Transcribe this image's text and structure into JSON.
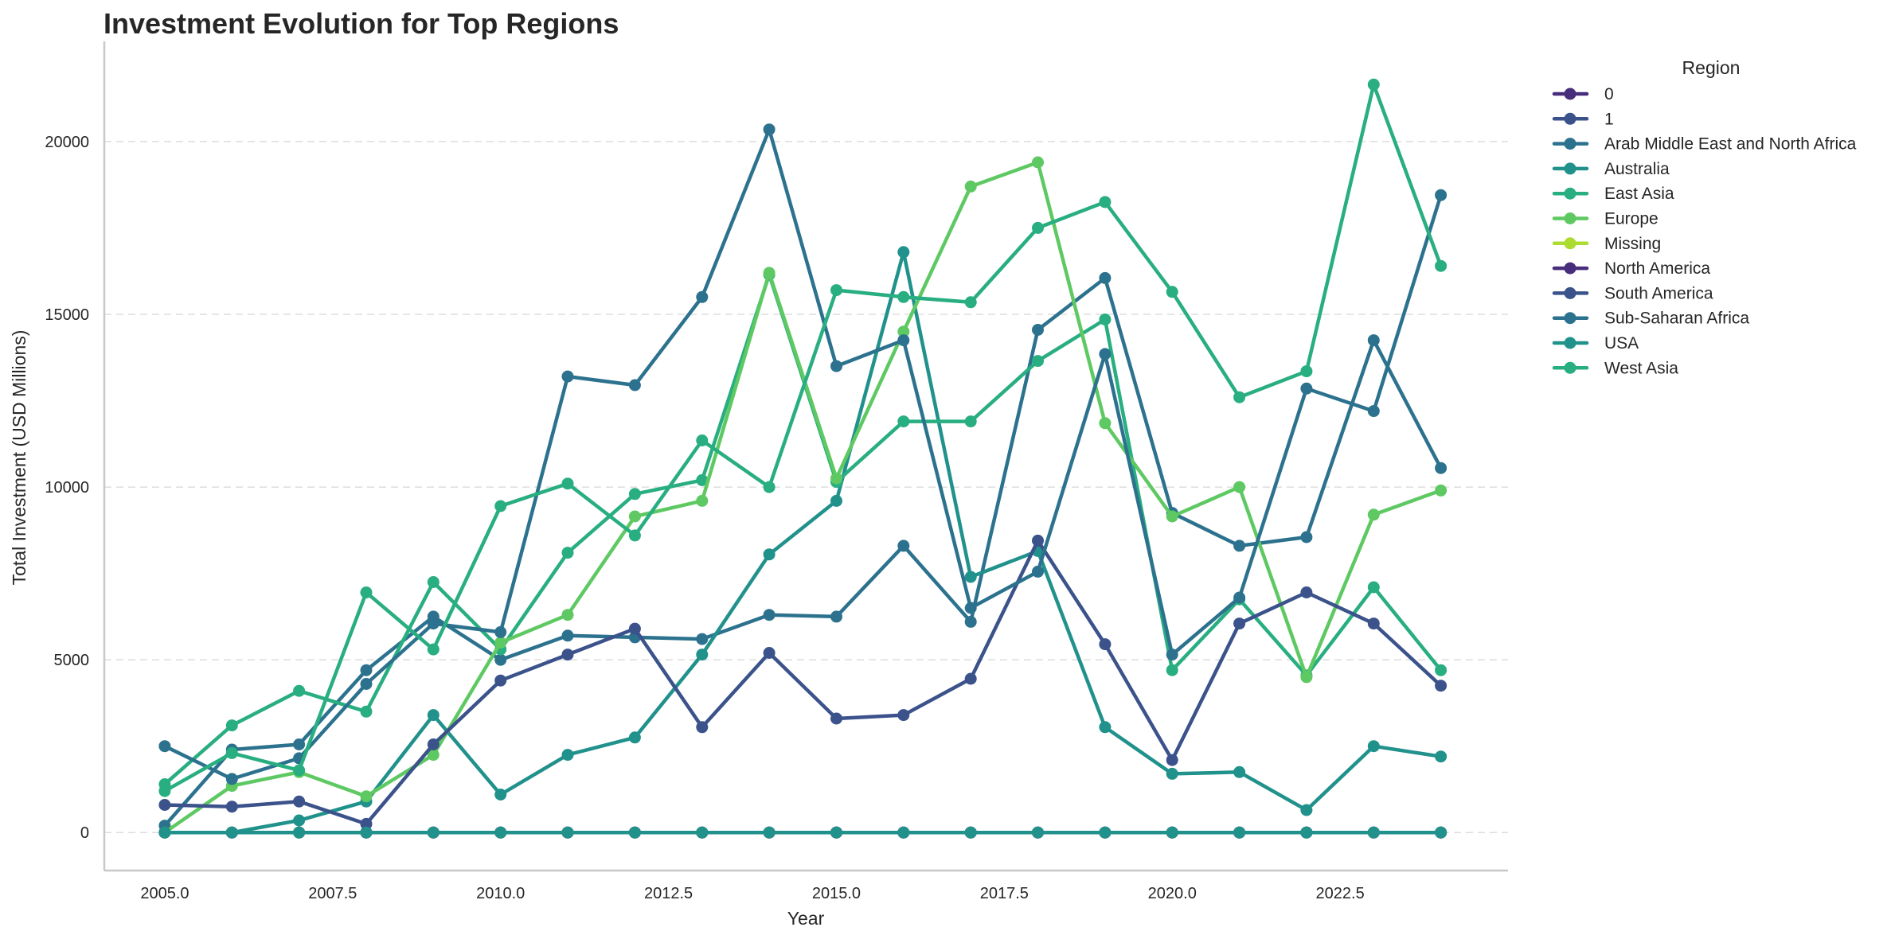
{
  "chart_data": {
    "type": "line",
    "title": "Investment Evolution for Top Regions",
    "xlabel": "Year",
    "ylabel": "Total Investment (USD Millions)",
    "xlim": [
      2004.1,
      2025.0
    ],
    "ylim": [
      -1100,
      22900
    ],
    "x_ticks": [
      2005.0,
      2007.5,
      2010.0,
      2012.5,
      2015.0,
      2017.5,
      2020.0,
      2022.5
    ],
    "x_tick_labels": [
      "2005.0",
      "2007.5",
      "2010.0",
      "2012.5",
      "2015.0",
      "2017.5",
      "2020.0",
      "2022.5"
    ],
    "y_ticks": [
      0,
      5000,
      10000,
      15000,
      20000
    ],
    "y_tick_labels": [
      "0",
      "5000",
      "10000",
      "15000",
      "20000"
    ],
    "grid": "horizontal dashed",
    "legend_title": "Region",
    "legend_placement": "outside right",
    "x": [
      2005,
      2006,
      2007,
      2008,
      2009,
      2010,
      2011,
      2012,
      2013,
      2014,
      2015,
      2016,
      2017,
      2018,
      2019,
      2020,
      2021,
      2022,
      2023,
      2024
    ],
    "series": [
      {
        "name": "0",
        "color": "#472d7b",
        "values": [
          0,
          0,
          0,
          0,
          0,
          0,
          0,
          0,
          0,
          0,
          0,
          0,
          0,
          0,
          0,
          0,
          0,
          0,
          0,
          0
        ]
      },
      {
        "name": "1",
        "color": "#3b528b",
        "values": [
          0,
          0,
          0,
          0,
          0,
          0,
          0,
          0,
          0,
          0,
          0,
          0,
          0,
          0,
          0,
          0,
          0,
          0,
          0,
          0
        ]
      },
      {
        "name": "Arab Middle East and North Africa",
        "color": "#2c728e",
        "values": [
          200,
          2400,
          2550,
          4700,
          6250,
          5000,
          5700,
          5650,
          5600,
          6300,
          6250,
          8300,
          6100,
          14550,
          16050,
          9250,
          8300,
          8550,
          14250,
          10550
        ]
      },
      {
        "name": "Australia",
        "color": "#21918c",
        "values": [
          0,
          0,
          350,
          900,
          3400,
          1100,
          2250,
          2750,
          5150,
          8050,
          9600,
          16800,
          7400,
          8150,
          3050,
          1700,
          1750,
          650,
          2500,
          2200
        ]
      },
      {
        "name": "East Asia",
        "color": "#28ae80",
        "values": [
          1400,
          3100,
          4100,
          3500,
          7250,
          5300,
          8100,
          9800,
          10200,
          16150,
          10150,
          11900,
          11900,
          13650,
          14850,
          4700,
          6750,
          4550,
          7100,
          4700
        ]
      },
      {
        "name": "Europe",
        "color": "#5ec962",
        "values": [
          0,
          1350,
          1750,
          1050,
          2250,
          5500,
          6300,
          9150,
          9600,
          16200,
          10250,
          14500,
          18700,
          19400,
          11850,
          9150,
          10000,
          4500,
          9200,
          9900
        ]
      },
      {
        "name": "Missing",
        "color": "#addc30",
        "values": [
          0,
          0,
          0,
          0,
          0,
          0,
          0,
          0,
          0,
          0,
          0,
          0,
          0,
          0,
          0,
          0,
          0,
          0,
          0,
          0
        ]
      },
      {
        "name": "North America",
        "color": "#472d7b",
        "values": [
          0,
          0,
          0,
          0,
          0,
          0,
          0,
          0,
          0,
          0,
          0,
          0,
          0,
          0,
          0,
          0,
          0,
          0,
          0,
          0
        ]
      },
      {
        "name": "South America",
        "color": "#3b528b",
        "values": [
          800,
          750,
          900,
          250,
          2550,
          4400,
          5150,
          5900,
          3050,
          5200,
          3300,
          3400,
          4450,
          8450,
          5450,
          2100,
          6050,
          6950,
          6050,
          4250
        ]
      },
      {
        "name": "Sub-Saharan Africa",
        "color": "#2c728e",
        "values": [
          2500,
          1550,
          2150,
          4300,
          6050,
          5800,
          13200,
          12950,
          15500,
          20350,
          13500,
          14250,
          6500,
          7550,
          13850,
          5150,
          6800,
          12850,
          12200,
          18450
        ]
      },
      {
        "name": "USA",
        "color": "#21918c",
        "values": [
          0,
          0,
          0,
          0,
          0,
          0,
          0,
          0,
          0,
          0,
          0,
          0,
          0,
          0,
          0,
          0,
          0,
          0,
          0,
          0
        ]
      },
      {
        "name": "West Asia",
        "color": "#28ae80",
        "values": [
          1200,
          2300,
          1800,
          6950,
          5300,
          9450,
          10100,
          8600,
          11350,
          10000,
          15700,
          15500,
          15350,
          17500,
          18250,
          15650,
          12600,
          13350,
          21650,
          16400
        ]
      }
    ]
  }
}
